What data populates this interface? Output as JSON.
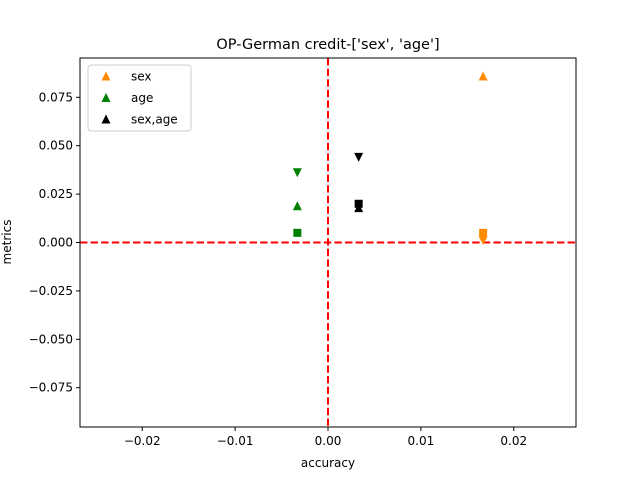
{
  "chart_data": {
    "type": "scatter",
    "title": "OP-German credit-['sex', 'age']",
    "xlabel": "accuracy",
    "ylabel": "metrics",
    "xlim": [
      -0.0267,
      0.0267
    ],
    "ylim": [
      -0.0953,
      0.0953
    ],
    "xticks": [
      -0.02,
      -0.01,
      0.0,
      0.01,
      0.02
    ],
    "xtick_labels": [
      "−0.02",
      "−0.01",
      "0.00",
      "0.01",
      "0.02"
    ],
    "yticks": [
      -0.075,
      -0.05,
      -0.025,
      0.0,
      0.025,
      0.05,
      0.075
    ],
    "ytick_labels": [
      "−0.075",
      "−0.050",
      "−0.025",
      "0.000",
      "0.025",
      "0.050",
      "0.075"
    ],
    "grid": false,
    "legend_position": "upper-left",
    "reference_lines": [
      {
        "orientation": "vertical",
        "value": 0.0,
        "color": "#ff0000",
        "style": "dashed"
      },
      {
        "orientation": "horizontal",
        "value": 0.0,
        "color": "#ff0000",
        "style": "dashed"
      }
    ],
    "series": [
      {
        "name": "sex",
        "color": "#ff8c00",
        "points": [
          {
            "x": 0.0167,
            "y": 0.086,
            "marker": "triangle-up"
          },
          {
            "x": 0.0167,
            "y": 0.005,
            "marker": "square"
          },
          {
            "x": 0.0167,
            "y": 0.001,
            "marker": "triangle-down"
          }
        ]
      },
      {
        "name": "age",
        "color": "#008000",
        "points": [
          {
            "x": -0.0033,
            "y": 0.036,
            "marker": "triangle-down"
          },
          {
            "x": -0.0033,
            "y": 0.019,
            "marker": "triangle-up"
          },
          {
            "x": -0.0033,
            "y": 0.005,
            "marker": "square"
          }
        ]
      },
      {
        "name": "sex,age",
        "color": "#000000",
        "points": [
          {
            "x": 0.0033,
            "y": 0.044,
            "marker": "triangle-down"
          },
          {
            "x": 0.0033,
            "y": 0.02,
            "marker": "square"
          },
          {
            "x": 0.0033,
            "y": 0.018,
            "marker": "triangle-up"
          }
        ]
      }
    ]
  }
}
